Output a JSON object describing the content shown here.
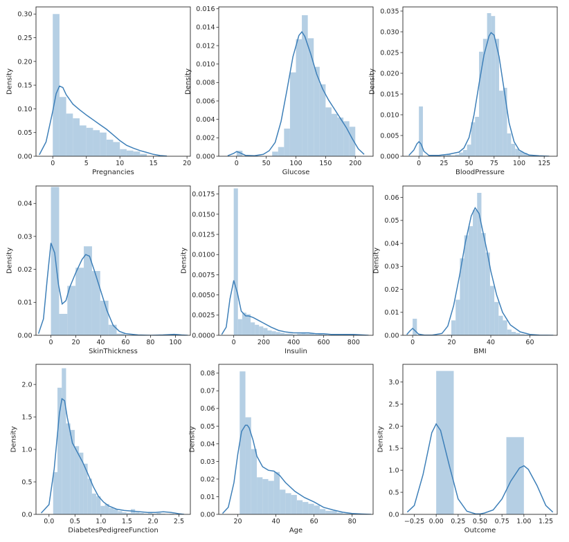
{
  "chart_data": [
    {
      "type": "histogram+kde",
      "xlabel": "Pregnancies",
      "ylabel": "Density",
      "xlim": [
        -2.5,
        20.5
      ],
      "ylim": [
        0,
        0.315
      ],
      "xticks": [
        0,
        5,
        10,
        15,
        20
      ],
      "xtick_labels": [
        "0",
        "5",
        "10",
        "15",
        "20"
      ],
      "yticks": [
        0,
        0.05,
        0.1,
        0.15,
        0.2,
        0.25,
        0.3
      ],
      "ytick_labels": [
        "0.00",
        "0.05",
        "0.10",
        "0.15",
        "0.20",
        "0.25",
        "0.30"
      ],
      "bin_edges": [
        0,
        1,
        2,
        3,
        4,
        5,
        6,
        7,
        8,
        9,
        10,
        11,
        12,
        13,
        14
      ],
      "density": [
        0.3,
        0.125,
        0.09,
        0.08,
        0.065,
        0.06,
        0.055,
        0.05,
        0.035,
        0.03,
        0.015,
        0.012,
        0.01,
        0.005
      ],
      "kde": {
        "x": [
          -2,
          -1,
          0,
          0.5,
          1,
          1.5,
          2,
          3,
          4,
          5,
          6,
          7,
          8,
          9,
          10,
          11,
          12,
          13,
          14,
          15,
          16,
          17
        ],
        "y": [
          0.003,
          0.03,
          0.095,
          0.132,
          0.148,
          0.145,
          0.13,
          0.11,
          0.098,
          0.087,
          0.077,
          0.067,
          0.057,
          0.045,
          0.033,
          0.023,
          0.017,
          0.012,
          0.008,
          0.004,
          0.0015,
          0.0003
        ]
      }
    },
    {
      "type": "histogram+kde",
      "xlabel": "Glucose",
      "ylabel": "Density",
      "xlim": [
        -30,
        230
      ],
      "ylim": [
        0,
        0.0162
      ],
      "xticks": [
        0,
        50,
        100,
        150,
        200
      ],
      "xtick_labels": [
        "0",
        "50",
        "100",
        "150",
        "200"
      ],
      "yticks": [
        0,
        0.002,
        0.004,
        0.006,
        0.008,
        0.01,
        0.012,
        0.014,
        0.016
      ],
      "ytick_labels": [
        "0.000",
        "0.002",
        "0.004",
        "0.006",
        "0.008",
        "0.010",
        "0.012",
        "0.014",
        "0.016"
      ],
      "bin_edges": [
        0,
        10,
        20,
        30,
        40,
        50,
        60,
        70,
        80,
        90,
        100,
        110,
        120,
        130,
        140,
        150,
        160,
        170,
        180,
        190,
        200
      ],
      "density": [
        0.0006,
        0,
        0,
        0,
        0,
        0,
        0.0005,
        0.001,
        0.003,
        0.0091,
        0.0127,
        0.0153,
        0.0128,
        0.0097,
        0.0078,
        0.0053,
        0.0046,
        0.0042,
        0.0038,
        0.0032
      ],
      "kde": {
        "x": [
          -15,
          -5,
          0,
          5,
          15,
          30,
          45,
          55,
          65,
          75,
          85,
          95,
          105,
          110,
          115,
          125,
          135,
          145,
          155,
          165,
          175,
          185,
          195,
          205,
          215
        ],
        "y": [
          5e-05,
          0.0003,
          0.0005,
          0.0004,
          0.0001,
          5e-05,
          0.0002,
          0.0006,
          0.0015,
          0.0038,
          0.0072,
          0.0108,
          0.0131,
          0.0135,
          0.013,
          0.0111,
          0.0089,
          0.0073,
          0.0061,
          0.0051,
          0.0041,
          0.0031,
          0.0019,
          0.0008,
          0.0002
        ]
      }
    },
    {
      "type": "histogram+kde",
      "xlabel": "BloodPressure",
      "ylabel": "Density",
      "xlim": [
        -16,
        138
      ],
      "ylim": [
        0,
        0.036
      ],
      "xticks": [
        0,
        25,
        50,
        75,
        100,
        125
      ],
      "xtick_labels": [
        "0",
        "25",
        "50",
        "75",
        "100",
        "125"
      ],
      "yticks": [
        0,
        0.005,
        0.01,
        0.015,
        0.02,
        0.025,
        0.03,
        0.035
      ],
      "ytick_labels": [
        "0.000",
        "0.005",
        "0.010",
        "0.015",
        "0.020",
        "0.025",
        "0.030",
        "0.035"
      ],
      "bin_edges": [
        0,
        4,
        8,
        12,
        16,
        20,
        24,
        28,
        32,
        36,
        40,
        44,
        48,
        52,
        56,
        60,
        64,
        68,
        72,
        76,
        80,
        84,
        88,
        92,
        96,
        100,
        104,
        108,
        112,
        116,
        120,
        124
      ],
      "density": [
        0.012,
        0,
        0,
        0,
        0,
        0,
        0.0002,
        0.0004,
        0.0002,
        0.0004,
        0.0009,
        0.0015,
        0.0028,
        0.0082,
        0.0095,
        0.0252,
        0.0283,
        0.0345,
        0.0338,
        0.0283,
        0.0158,
        0.0165,
        0.0055,
        0.003,
        0.0018,
        0.0012,
        0.0008,
        0.0003,
        0.0002,
        0.0001,
        0.0001
      ],
      "kde": {
        "x": [
          -10,
          -5,
          -2,
          0,
          2,
          5,
          10,
          20,
          30,
          40,
          45,
          50,
          55,
          60,
          65,
          70,
          72,
          75,
          80,
          85,
          90,
          95,
          100,
          105,
          110,
          120,
          130
        ],
        "y": [
          0.0002,
          0.0015,
          0.003,
          0.0035,
          0.003,
          0.0012,
          0.0002,
          0.0002,
          0.0005,
          0.001,
          0.002,
          0.0045,
          0.01,
          0.0175,
          0.0245,
          0.029,
          0.0298,
          0.0292,
          0.024,
          0.016,
          0.008,
          0.0035,
          0.0015,
          0.0008,
          0.0003,
          0.0001,
          0
        ]
      }
    },
    {
      "type": "histogram+kde",
      "xlabel": "SkinThickness",
      "ylabel": "Density",
      "xlim": [
        -12,
        112
      ],
      "ylim": [
        0,
        0.0453
      ],
      "xticks": [
        0,
        20,
        40,
        60,
        80,
        100
      ],
      "xtick_labels": [
        "0",
        "20",
        "40",
        "60",
        "80",
        "100"
      ],
      "yticks": [
        0,
        0.01,
        0.02,
        0.03,
        0.04
      ],
      "ytick_labels": [
        "0.00",
        "0.01",
        "0.02",
        "0.03",
        "0.04"
      ],
      "bin_edges": [
        0,
        6.6,
        13.2,
        19.8,
        26.4,
        33,
        39.6,
        46.2,
        52.8,
        59.4,
        66,
        72.6,
        79.2,
        85.8,
        92.4,
        99
      ],
      "density": [
        0.045,
        0.0065,
        0.015,
        0.0205,
        0.027,
        0.0195,
        0.0105,
        0.0032,
        0.0005,
        0.0001,
        0,
        0,
        0,
        0,
        0.0002
      ],
      "kde": {
        "x": [
          -10,
          -6,
          -3,
          0,
          3,
          6,
          9,
          12,
          15,
          20,
          25,
          28,
          31,
          35,
          40,
          45,
          50,
          55,
          60,
          70,
          80,
          90,
          99,
          105,
          110
        ],
        "y": [
          0.0005,
          0.005,
          0.017,
          0.028,
          0.025,
          0.0155,
          0.0095,
          0.0105,
          0.0145,
          0.019,
          0.023,
          0.0245,
          0.024,
          0.0195,
          0.0135,
          0.0075,
          0.003,
          0.0012,
          0.0005,
          0.0001,
          0,
          0.0001,
          0.0003,
          0.0001,
          0
        ]
      }
    },
    {
      "type": "histogram+kde",
      "xlabel": "Insulin",
      "ylabel": "Density",
      "xlim": [
        -100,
        930
      ],
      "ylim": [
        0,
        0.0185
      ],
      "xticks": [
        0,
        200,
        400,
        600,
        800
      ],
      "xtick_labels": [
        "0",
        "200",
        "400",
        "600",
        "800"
      ],
      "yticks": [
        0,
        0.0025,
        0.005,
        0.0075,
        0.01,
        0.0125,
        0.015,
        0.0175
      ],
      "ytick_labels": [
        "0.0000",
        "0.0025",
        "0.0050",
        "0.0075",
        "0.0100",
        "0.0125",
        "0.0150",
        "0.0175"
      ],
      "bin_edges": [
        0,
        28.2,
        56.4,
        84.6,
        112.8,
        141,
        169.2,
        197.4,
        225.6,
        253.8,
        282,
        310.2,
        338.4,
        366.6,
        394.8,
        423,
        451.2,
        479.4,
        507.6,
        535.8,
        564,
        592.2,
        620.4,
        648.6,
        676.8,
        705,
        733.2,
        761.4,
        789.6,
        817.8,
        846
      ],
      "density": [
        0.0182,
        0.002,
        0.0028,
        0.0026,
        0.0016,
        0.0013,
        0.0011,
        0.0009,
        0.0006,
        0.0005,
        0.0004,
        0.0003,
        0.0002,
        0.0002,
        0.0001,
        0.0002,
        0.0003,
        0.0002,
        0.0002,
        0.0001,
        0.0002,
        0.0001,
        0,
        0.0001,
        0.0001,
        0,
        0.0001,
        0,
        0,
        0.0001
      ],
      "kde": {
        "x": [
          -80,
          -50,
          -25,
          0,
          25,
          50,
          80,
          100,
          130,
          160,
          200,
          250,
          300,
          350,
          400,
          450,
          500,
          550,
          600,
          650,
          700,
          750,
          800,
          850,
          900
        ],
        "y": [
          0.0001,
          0.001,
          0.0045,
          0.0068,
          0.0052,
          0.003,
          0.0024,
          0.0024,
          0.0022,
          0.0019,
          0.0015,
          0.001,
          0.0006,
          0.0004,
          0.0003,
          0.0003,
          0.0003,
          0.0002,
          0.0002,
          0.0001,
          0.0001,
          0.0001,
          0.0001,
          5e-05,
          0
        ]
      }
    },
    {
      "type": "histogram+kde",
      "xlabel": "BMI",
      "ylabel": "Density",
      "xlim": [
        -5,
        74
      ],
      "ylim": [
        0,
        0.065
      ],
      "xticks": [
        0,
        20,
        40,
        60
      ],
      "xtick_labels": [
        "0",
        "20",
        "40",
        "60"
      ],
      "yticks": [
        0,
        0.01,
        0.02,
        0.03,
        0.04,
        0.05,
        0.06
      ],
      "ytick_labels": [
        "0.00",
        "0.01",
        "0.02",
        "0.03",
        "0.04",
        "0.05",
        "0.06"
      ],
      "bin_edges": [
        0,
        2.2,
        4.4,
        6.6,
        8.8,
        11,
        13.2,
        15.4,
        17.6,
        19.8,
        22,
        24.2,
        26.4,
        28.6,
        30.8,
        33,
        35.2,
        37.4,
        39.6,
        41.8,
        44,
        46.2,
        48.4,
        50.6,
        52.8,
        55,
        57.2,
        59.4,
        61.6,
        63.8,
        66
      ],
      "density": [
        0.0072,
        0,
        0,
        0,
        0,
        0,
        0,
        0,
        0.0003,
        0.0065,
        0.0155,
        0.0335,
        0.0435,
        0.0475,
        0.0545,
        0.062,
        0.0445,
        0.036,
        0.0215,
        0.0145,
        0.0085,
        0.0065,
        0.0025,
        0.0015,
        0.001,
        0.0005,
        0.0003,
        0.0002,
        0.0001,
        0.0002
      ],
      "kde": {
        "x": [
          -3,
          -1.5,
          0,
          1.5,
          3,
          6,
          10,
          15,
          18,
          21,
          24,
          27,
          30,
          32,
          34,
          36,
          38,
          40,
          43,
          46,
          50,
          55,
          60,
          65,
          72
        ],
        "y": [
          0.0003,
          0.0018,
          0.003,
          0.0018,
          0.0005,
          0.0001,
          0.0001,
          0.0008,
          0.004,
          0.013,
          0.026,
          0.0405,
          0.052,
          0.0555,
          0.053,
          0.045,
          0.037,
          0.028,
          0.0175,
          0.01,
          0.0045,
          0.0015,
          0.0004,
          0.0001,
          0
        ]
      }
    },
    {
      "type": "histogram+kde",
      "xlabel": "DiabetesPedigreeFunction",
      "ylabel": "Density",
      "xlim": [
        -0.25,
        2.72
      ],
      "ylim": [
        0,
        2.31
      ],
      "xticks": [
        0,
        0.5,
        1,
        1.5,
        2,
        2.5
      ],
      "xtick_labels": [
        "0.0",
        "0.5",
        "1.0",
        "1.5",
        "2.0",
        "2.5"
      ],
      "yticks": [
        0,
        0.5,
        1,
        1.5,
        2
      ],
      "ytick_labels": [
        "0.0",
        "0.5",
        "1.0",
        "1.5",
        "2.0"
      ],
      "bin_edges": [
        0.08,
        0.163,
        0.246,
        0.329,
        0.412,
        0.495,
        0.578,
        0.661,
        0.744,
        0.827,
        0.91,
        0.993,
        1.076,
        1.159,
        1.242,
        1.325,
        1.408,
        1.491,
        1.574,
        1.657,
        1.74,
        1.823,
        1.906,
        1.989,
        2.072,
        2.155,
        2.238,
        2.321,
        2.404
      ],
      "density": [
        0.65,
        1.95,
        2.25,
        1.4,
        1.3,
        1.05,
        0.95,
        0.78,
        0.55,
        0.32,
        0.28,
        0.13,
        0.16,
        0.1,
        0.08,
        0.05,
        0.03,
        0.02,
        0.08,
        0.03,
        0.02,
        0.01,
        0.02,
        0.01,
        0.02,
        0.01,
        0,
        0.01
      ],
      "kde": {
        "x": [
          -0.15,
          0,
          0.1,
          0.2,
          0.25,
          0.3,
          0.35,
          0.45,
          0.55,
          0.65,
          0.75,
          0.85,
          0.95,
          1.05,
          1.15,
          1.3,
          1.45,
          1.6,
          1.75,
          1.9,
          2.05,
          2.2,
          2.35,
          2.5,
          2.6
        ],
        "y": [
          0.02,
          0.15,
          0.7,
          1.55,
          1.78,
          1.75,
          1.5,
          1.1,
          0.95,
          0.8,
          0.62,
          0.43,
          0.28,
          0.19,
          0.13,
          0.08,
          0.06,
          0.05,
          0.04,
          0.03,
          0.03,
          0.04,
          0.03,
          0.01,
          0
        ]
      }
    },
    {
      "type": "histogram+kde",
      "xlabel": "Age",
      "ylabel": "Density",
      "xlim": [
        10,
        91
      ],
      "ylim": [
        0,
        0.085
      ],
      "xticks": [
        20,
        40,
        60,
        80
      ],
      "xtick_labels": [
        "20",
        "40",
        "60",
        "80"
      ],
      "yticks": [
        0,
        0.01,
        0.02,
        0.03,
        0.04,
        0.05,
        0.06,
        0.07,
        0.08
      ],
      "ytick_labels": [
        "0.00",
        "0.01",
        "0.02",
        "0.03",
        "0.04",
        "0.05",
        "0.06",
        "0.07",
        "0.08"
      ],
      "bin_edges": [
        21,
        24,
        27,
        30,
        33,
        36,
        39,
        42,
        45,
        48,
        51,
        54,
        57,
        60,
        63,
        66,
        69,
        72,
        75,
        78,
        81
      ],
      "density": [
        0.081,
        0.055,
        0.037,
        0.021,
        0.02,
        0.019,
        0.024,
        0.014,
        0.012,
        0.011,
        0.008,
        0.007,
        0.006,
        0.005,
        0.003,
        0.002,
        0.002,
        0.001,
        0.0005,
        0.0005
      ],
      "kde": {
        "x": [
          12,
          15,
          18,
          20,
          22,
          24,
          25,
          26,
          28,
          30,
          33,
          36,
          39,
          42,
          45,
          50,
          55,
          60,
          65,
          70,
          75,
          80,
          85,
          90
        ],
        "y": [
          0.0005,
          0.004,
          0.018,
          0.034,
          0.047,
          0.0505,
          0.0505,
          0.049,
          0.042,
          0.033,
          0.027,
          0.025,
          0.0245,
          0.022,
          0.018,
          0.013,
          0.0095,
          0.007,
          0.004,
          0.0025,
          0.0012,
          0.0005,
          0.0002,
          0
        ]
      }
    },
    {
      "type": "histogram+kde",
      "xlabel": "Outcome",
      "ylabel": "Density",
      "xlim": [
        -0.38,
        1.38
      ],
      "ylim": [
        0,
        3.4
      ],
      "xticks": [
        -0.25,
        0,
        0.25,
        0.5,
        0.75,
        1,
        1.25
      ],
      "xtick_labels": [
        "−0.25",
        "0.00",
        "0.25",
        "0.50",
        "0.75",
        "1.00",
        "1.25"
      ],
      "yticks": [
        0,
        0.5,
        1,
        1.5,
        2,
        2.5,
        3
      ],
      "ytick_labels": [
        "0.0",
        "0.5",
        "1.0",
        "1.5",
        "2.0",
        "2.5",
        "3.0"
      ],
      "bin_edges": [
        0,
        0.2,
        0.4,
        0.6,
        0.8,
        1.0
      ],
      "density": [
        3.25,
        0,
        0,
        0,
        1.75
      ],
      "kde": {
        "x": [
          -0.33,
          -0.25,
          -0.15,
          -0.05,
          0,
          0.05,
          0.15,
          0.25,
          0.35,
          0.45,
          0.5,
          0.55,
          0.65,
          0.75,
          0.85,
          0.95,
          1,
          1.05,
          1.15,
          1.25,
          1.33
        ],
        "y": [
          0.05,
          0.2,
          0.9,
          1.85,
          2.05,
          1.9,
          1.1,
          0.35,
          0.07,
          0.01,
          0.01,
          0.03,
          0.1,
          0.35,
          0.75,
          1.05,
          1.1,
          1.02,
          0.65,
          0.2,
          0.05
        ]
      }
    }
  ]
}
